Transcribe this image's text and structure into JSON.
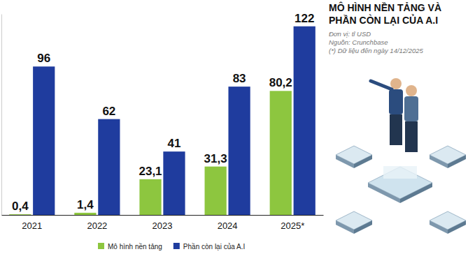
{
  "chart_data": {
    "type": "bar",
    "title": "MÔ HÌNH NỀN TẢNG VÀ PHẦN CÒN LẠI CỦA A.I",
    "subtitle": [
      "Đơn vị: tỉ USD",
      "Nguồn: Crunchbase",
      "(*) Dữ liệu đến ngày 14/12/2025"
    ],
    "categories": [
      "2021",
      "2022",
      "2023",
      "2024",
      "2025*"
    ],
    "series": [
      {
        "name": "Mô hình nền tảng",
        "color": "#8dc63f",
        "values": [
          0.4,
          1.4,
          23.1,
          31.3,
          80.2
        ],
        "value_labels": [
          "0,4",
          "1,4",
          "23,1",
          "31,3",
          "80,2"
        ]
      },
      {
        "name": "Phần còn lại của A.I",
        "color": "#1f3c9e",
        "values": [
          96,
          62,
          41,
          83,
          122
        ]
      }
    ],
    "ylim": [
      0,
      130
    ],
    "tick_labels": "x",
    "data_labels": true,
    "legend": "bottom",
    "grid": false
  }
}
